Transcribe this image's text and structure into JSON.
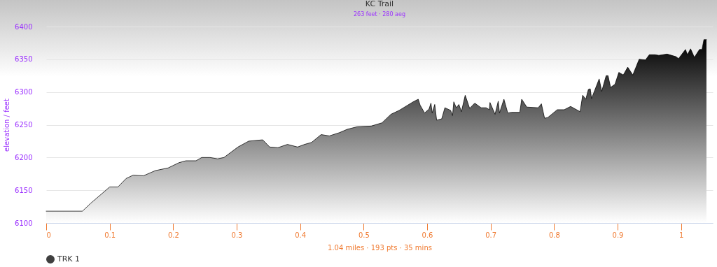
{
  "chart_data": {
    "type": "area",
    "title": "KC Trail",
    "subtitle": "263 feet · 280 aeg",
    "xlabel": "1.04 miles · 193 pts · 35 mins",
    "ylabel": "elevation / feet",
    "xlim": [
      0,
      1.05
    ],
    "xticks": [
      0,
      0.1,
      0.2,
      0.3,
      0.4,
      0.5,
      0.6,
      0.7,
      0.8,
      0.9,
      1
    ],
    "ylim": [
      6100,
      6400
    ],
    "yticks": [
      6100,
      6150,
      6200,
      6250,
      6300,
      6350,
      6400
    ],
    "grid": "y",
    "legend": "bottom",
    "marker": "none",
    "series": [
      {
        "name": "TRK 1",
        "color": "#000000",
        "x": [
          0,
          0.057,
          0.07,
          0.088,
          0.1,
          0.113,
          0.126,
          0.137,
          0.153,
          0.172,
          0.192,
          0.209,
          0.22,
          0.236,
          0.245,
          0.258,
          0.27,
          0.28,
          0.302,
          0.319,
          0.341,
          0.352,
          0.365,
          0.38,
          0.396,
          0.407,
          0.418,
          0.433,
          0.446,
          0.462,
          0.474,
          0.49,
          0.512,
          0.529,
          0.543,
          0.556,
          0.578,
          0.586,
          0.589,
          0.596,
          0.603,
          0.606,
          0.608,
          0.612,
          0.615,
          0.623,
          0.628,
          0.637,
          0.64,
          0.642,
          0.646,
          0.65,
          0.654,
          0.66,
          0.667,
          0.675,
          0.685,
          0.693,
          0.698,
          0.699,
          0.707,
          0.712,
          0.714,
          0.721,
          0.727,
          0.733,
          0.746,
          0.749,
          0.757,
          0.775,
          0.78,
          0.785,
          0.79,
          0.805,
          0.816,
          0.826,
          0.841,
          0.845,
          0.85,
          0.854,
          0.857,
          0.859,
          0.871,
          0.875,
          0.882,
          0.885,
          0.889,
          0.896,
          0.902,
          0.909,
          0.916,
          0.924,
          0.934,
          0.944,
          0.95,
          0.959,
          0.965,
          0.978,
          0.992,
          0.996,
          1.007,
          1.01,
          1.015,
          1.021,
          1.029,
          1.033,
          1.036,
          1.04
        ],
        "values": [
          6118,
          6118,
          6130,
          6145,
          6155,
          6155,
          6168,
          6173,
          6172,
          6180,
          6184,
          6192,
          6195,
          6195,
          6200,
          6200,
          6198,
          6200,
          6216,
          6225,
          6227,
          6216,
          6215,
          6220,
          6216,
          6220,
          6223,
          6235,
          6233,
          6238,
          6243,
          6247,
          6248,
          6253,
          6266,
          6272,
          6285,
          6289,
          6280,
          6268,
          6274,
          6283,
          6268,
          6281,
          6257,
          6259,
          6276,
          6272,
          6264,
          6285,
          6276,
          6281,
          6270,
          6295,
          6275,
          6283,
          6276,
          6276,
          6273,
          6284,
          6266,
          6286,
          6268,
          6289,
          6268,
          6269,
          6269,
          6289,
          6277,
          6276,
          6282,
          6260,
          6261,
          6273,
          6273,
          6278,
          6270,
          6295,
          6289,
          6304,
          6305,
          6290,
          6320,
          6301,
          6325,
          6325,
          6307,
          6312,
          6330,
          6326,
          6338,
          6326,
          6350,
          6349,
          6357,
          6357,
          6356,
          6358,
          6354,
          6351,
          6365,
          6357,
          6366,
          6353,
          6365,
          6365,
          6380,
          6380
        ]
      }
    ]
  }
}
